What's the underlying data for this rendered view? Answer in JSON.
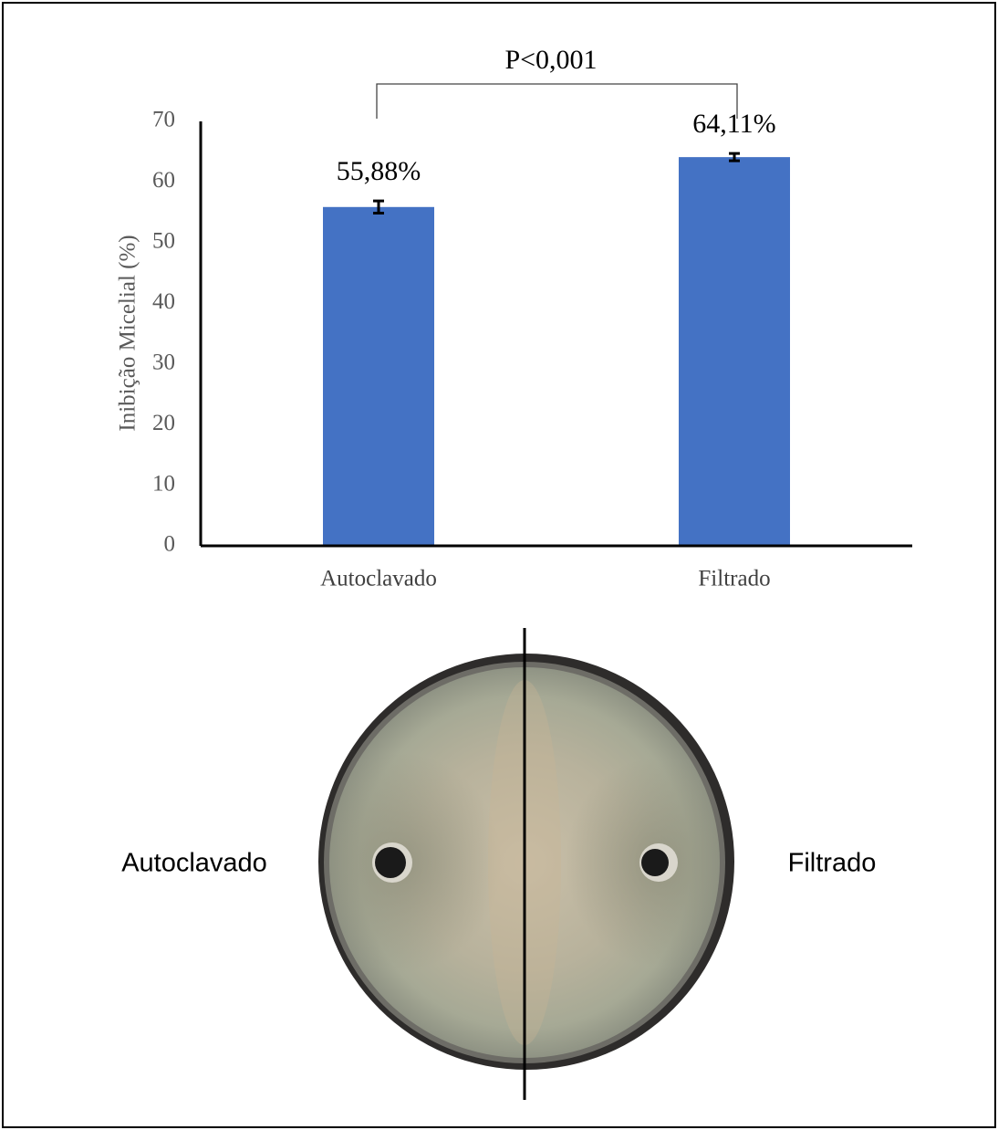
{
  "chart_data": {
    "type": "bar",
    "annotation": "P<0,001",
    "y_label": "Inibição Micelial (%)",
    "categories": [
      "Autoclavado",
      "Filtrado"
    ],
    "values": [
      55.88,
      64.11
    ],
    "value_labels": [
      "55,88%",
      "64,11%"
    ],
    "errors": [
      1.0,
      0.6
    ],
    "color": "#4472c4",
    "ylim": [
      0,
      70
    ],
    "yticks": [
      0,
      10,
      20,
      30,
      40,
      50,
      60,
      70
    ]
  },
  "photo_labels": [
    "Autoclavado",
    "Filtrado"
  ]
}
